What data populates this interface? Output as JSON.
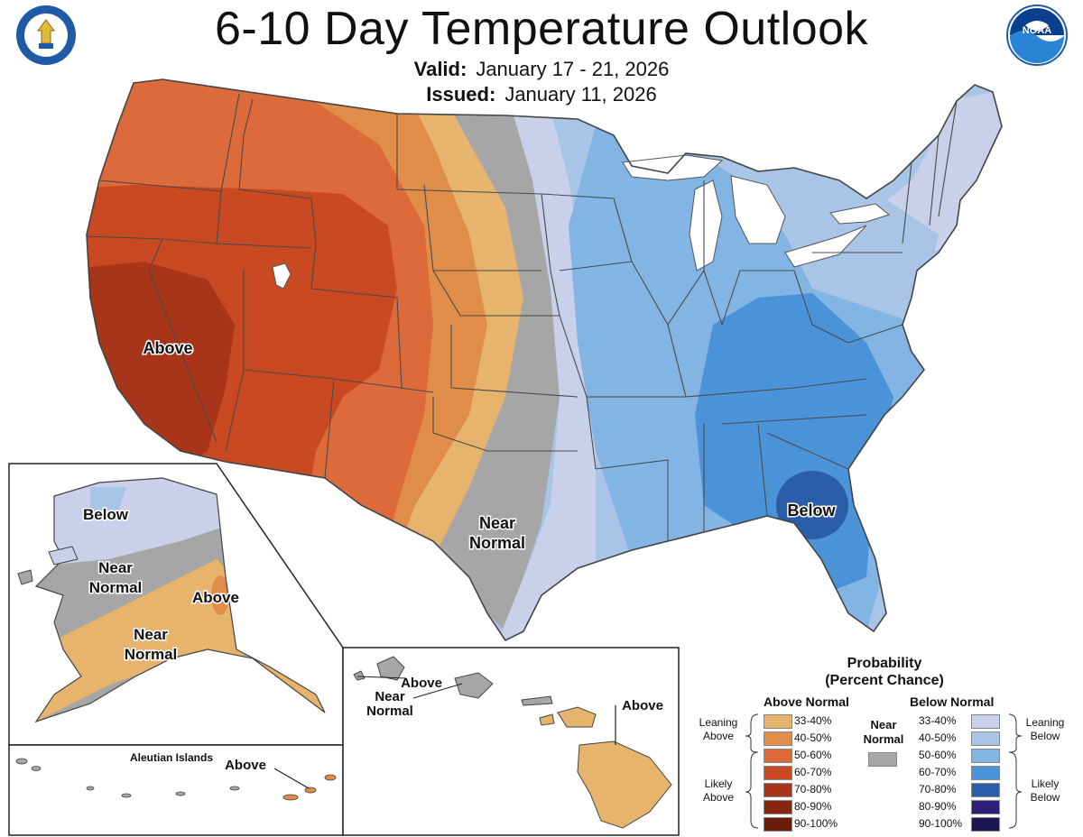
{
  "header": {
    "title": "6-10 Day Temperature Outlook",
    "valid_label": "Valid:",
    "valid_value": "January 17 - 21, 2026",
    "issued_label": "Issued:",
    "issued_value": "January 11, 2026"
  },
  "logos": {
    "left": "department-of-commerce-seal",
    "right": "noaa-logo",
    "noaa_text": "NOAA"
  },
  "map_labels": {
    "conus_above": "Above",
    "conus_near": "Near",
    "conus_normal": "Normal",
    "conus_below": "Below",
    "ak_below": "Below",
    "ak_near1": "Near",
    "ak_normal1": "Normal",
    "ak_above": "Above",
    "ak_near2": "Near",
    "ak_normal2": "Normal",
    "aleutian_title": "Aleutian Islands",
    "aleutian_above": "Above",
    "hi_above1": "Above",
    "hi_near": "Near",
    "hi_normal": "Normal",
    "hi_above2": "Above"
  },
  "legend": {
    "title1": "Probability",
    "title2": "(Percent Chance)",
    "above_head": "Above Normal",
    "below_head": "Below Normal",
    "near_line1": "Near",
    "near_line2": "Normal",
    "near_color": "#a6a6a6",
    "leaning_above1": "Leaning",
    "leaning_above2": "Above",
    "likely_above1": "Likely",
    "likely_above2": "Above",
    "leaning_below1": "Leaning",
    "leaning_below2": "Below",
    "likely_below1": "Likely",
    "likely_below2": "Below",
    "above": [
      {
        "range": "33-40%",
        "color": "#e6b46c"
      },
      {
        "range": "40-50%",
        "color": "#e08d4a"
      },
      {
        "range": "50-60%",
        "color": "#dd6a3a"
      },
      {
        "range": "60-70%",
        "color": "#c94a22"
      },
      {
        "range": "70-80%",
        "color": "#a8341a"
      },
      {
        "range": "80-90%",
        "color": "#862810"
      },
      {
        "range": "90-100%",
        "color": "#6a1c08"
      }
    ],
    "below": [
      {
        "range": "33-40%",
        "color": "#c9d0ea"
      },
      {
        "range": "40-50%",
        "color": "#a8c4e6"
      },
      {
        "range": "50-60%",
        "color": "#82b4e4"
      },
      {
        "range": "60-70%",
        "color": "#4a93d8"
      },
      {
        "range": "70-80%",
        "color": "#2a5ea8"
      },
      {
        "range": "80-90%",
        "color": "#2b1f78"
      },
      {
        "range": "90-100%",
        "color": "#1c1650"
      }
    ]
  }
}
